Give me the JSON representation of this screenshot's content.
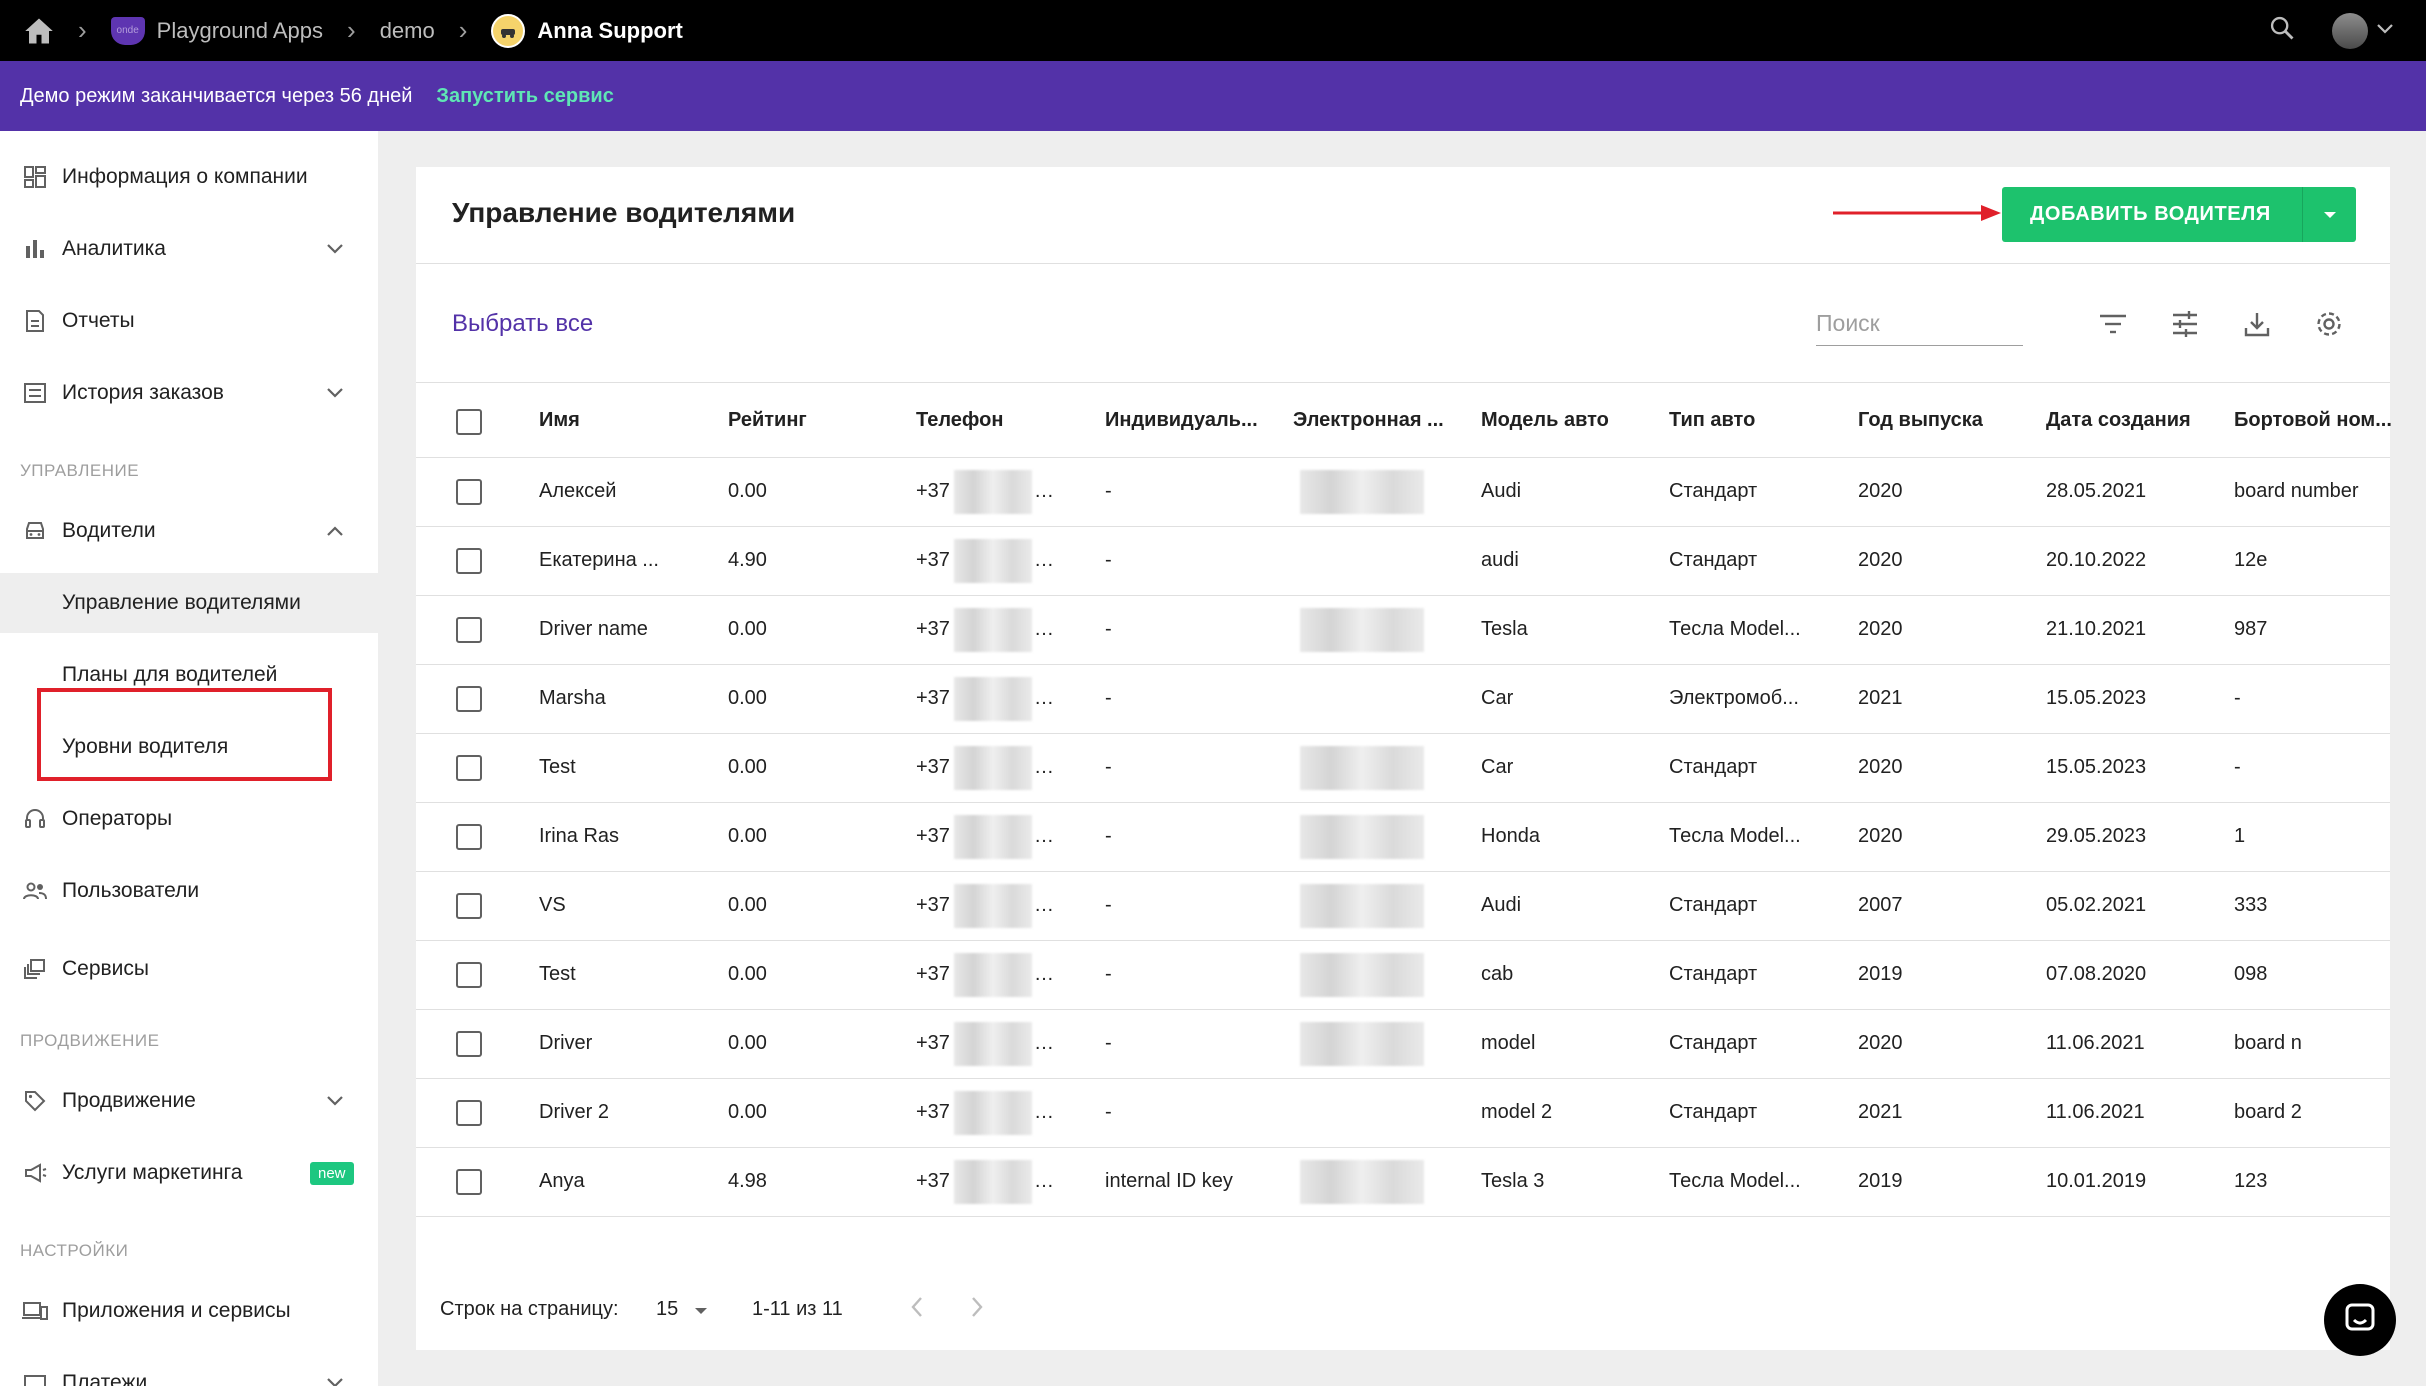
{
  "topbar": {
    "breadcrumbs": [
      "Playground Apps",
      "demo",
      "Anna Support"
    ]
  },
  "banner": {
    "message": "Демо режим заканчивается через 56 дней",
    "action": "Запустить сервис"
  },
  "sidebar": {
    "items": [
      {
        "label": "Информация о компании",
        "icon": "dashboard-icon"
      },
      {
        "label": "Аналитика",
        "icon": "bar-chart-icon"
      },
      {
        "label": "Отчеты",
        "icon": "report-icon"
      },
      {
        "label": "История заказов",
        "icon": "list-icon"
      }
    ],
    "section_management": "УПРАВЛЕНИЕ",
    "drivers": "Водители",
    "drivers_sub": [
      "Управление водителями",
      "Планы для водителей",
      "Уровни водителя"
    ],
    "operators": "Операторы",
    "users": "Пользователи",
    "services": "Сервисы",
    "section_promo": "ПРОДВИЖЕНИЕ",
    "promo": "Продвижение",
    "marketing": "Услуги маркетинга",
    "badge_new": "new",
    "section_settings": "НАСТРОЙКИ",
    "apps": "Приложения и сервисы",
    "payments": "Платежи"
  },
  "main": {
    "title": "Управление водителями",
    "add_button": "ДОБАВИТЬ ВОДИТЕЛЯ",
    "select_all": "Выбрать все",
    "search_placeholder": "Поиск",
    "columns": [
      "Имя",
      "Рейтинг",
      "Телефон",
      "Индивидуаль...",
      "Электронная ...",
      "Модель авто",
      "Тип авто",
      "Год выпуска",
      "Дата создания",
      "Бортовой ном..."
    ],
    "rows": [
      {
        "name": "Алексей",
        "rating": "0.00",
        "phone": "+37",
        "ind": "-",
        "model": "Audi",
        "type": "Стандарт",
        "year": "2020",
        "created": "28.05.2021",
        "board": "board number"
      },
      {
        "name": "Екатерина ...",
        "rating": "4.90",
        "phone": "+37",
        "ind": "-",
        "model": "audi",
        "type": "Стандарт",
        "year": "2020",
        "created": "20.10.2022",
        "board": "12e"
      },
      {
        "name": "Driver name",
        "rating": "0.00",
        "phone": "+37",
        "ind": "-",
        "model": "Tesla",
        "type": "Тесла Model...",
        "year": "2020",
        "created": "21.10.2021",
        "board": "987"
      },
      {
        "name": "Marsha",
        "rating": "0.00",
        "phone": "+37",
        "ind": "-",
        "model": "Car",
        "type": "Электромоб...",
        "year": "2021",
        "created": "15.05.2023",
        "board": "-"
      },
      {
        "name": "Test",
        "rating": "0.00",
        "phone": "+37",
        "ind": "-",
        "model": "Car",
        "type": "Стандарт",
        "year": "2020",
        "created": "15.05.2023",
        "board": "-"
      },
      {
        "name": "Irina Ras",
        "rating": "0.00",
        "phone": "+37",
        "ind": "-",
        "model": "Honda",
        "type": "Тесла Model...",
        "year": "2020",
        "created": "29.05.2023",
        "board": "1"
      },
      {
        "name": "VS",
        "rating": "0.00",
        "phone": "+37",
        "ind": "-",
        "model": "Audi",
        "type": "Стандарт",
        "year": "2007",
        "created": "05.02.2021",
        "board": "333"
      },
      {
        "name": "Test",
        "rating": "0.00",
        "phone": "+37",
        "ind": "-",
        "model": "cab",
        "type": "Стандарт",
        "year": "2019",
        "created": "07.08.2020",
        "board": "098"
      },
      {
        "name": "Driver",
        "rating": "0.00",
        "phone": "+37",
        "ind": "-",
        "model": "model",
        "type": "Стандарт",
        "year": "2020",
        "created": "11.06.2021",
        "board": "board n"
      },
      {
        "name": "Driver 2",
        "rating": "0.00",
        "phone": "+37",
        "ind": "-",
        "model": "model 2",
        "type": "Стандарт",
        "year": "2021",
        "created": "11.06.2021",
        "board": "board 2"
      },
      {
        "name": "Anya",
        "rating": "4.98",
        "phone": "+37",
        "ind": "internal ID key",
        "model": "Tesla 3",
        "type": "Тесла Model...",
        "year": "2019",
        "created": "10.01.2019",
        "board": "123"
      }
    ],
    "rows_per_page_label": "Строк на страницу:",
    "rows_per_page_value": "15",
    "range": "1-11 из 11"
  },
  "colors": {
    "banner": "#5332a8",
    "accent_green": "#1dc26d",
    "highlight_red": "#e0202a"
  }
}
